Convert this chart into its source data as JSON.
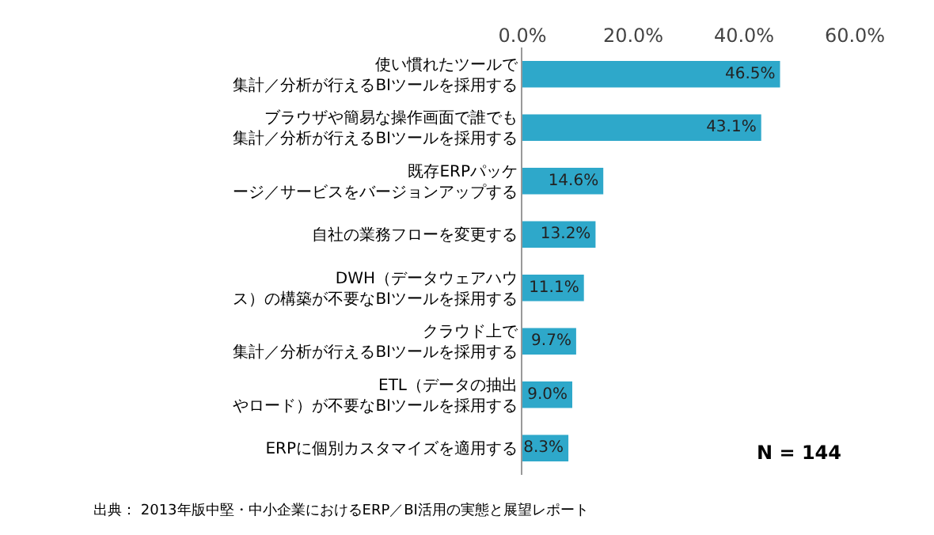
{
  "chart_data": {
    "type": "bar",
    "orientation": "horizontal",
    "categories": [
      "使い慣れたツールで集計／分析が行えるBIツールを採用する",
      "ブラウザや簡易な操作画面で誰でも集計／分析が行えるBIツールを採用する",
      "既存ERPパッケージ／サービスをバージョンアップする",
      "自社の業務フローを変更する",
      "DWH（データウェアハウス）の構築が不要なBIツールを採用する",
      "クラウド上で集計／分析が行えるBIツールを採用する",
      "ETL（データの抽出やロード）が不要なBIツールを採用する",
      "ERPに個別カスタマイズを適用する"
    ],
    "values": [
      46.5,
      43.1,
      14.6,
      13.2,
      11.1,
      9.7,
      9.0,
      8.3
    ],
    "value_labels": [
      "46.5%",
      "43.1%",
      "14.6%",
      "13.2%",
      "11.1%",
      "9.7%",
      "9.0%",
      "8.3%"
    ],
    "color": "#2ea8ca",
    "xlim": [
      0,
      60
    ],
    "xticks": [
      {
        "value": 0,
        "label": "0.0%"
      },
      {
        "value": 20,
        "label": "20.0%"
      },
      {
        "value": 40,
        "label": "40.0%"
      },
      {
        "value": 60,
        "label": "60.0%"
      }
    ],
    "legend": false,
    "annotations": [
      "N = 144",
      "出典： 2013年版中堅・中小企業におけるERP／BI活用の実態と展望レポート"
    ]
  }
}
